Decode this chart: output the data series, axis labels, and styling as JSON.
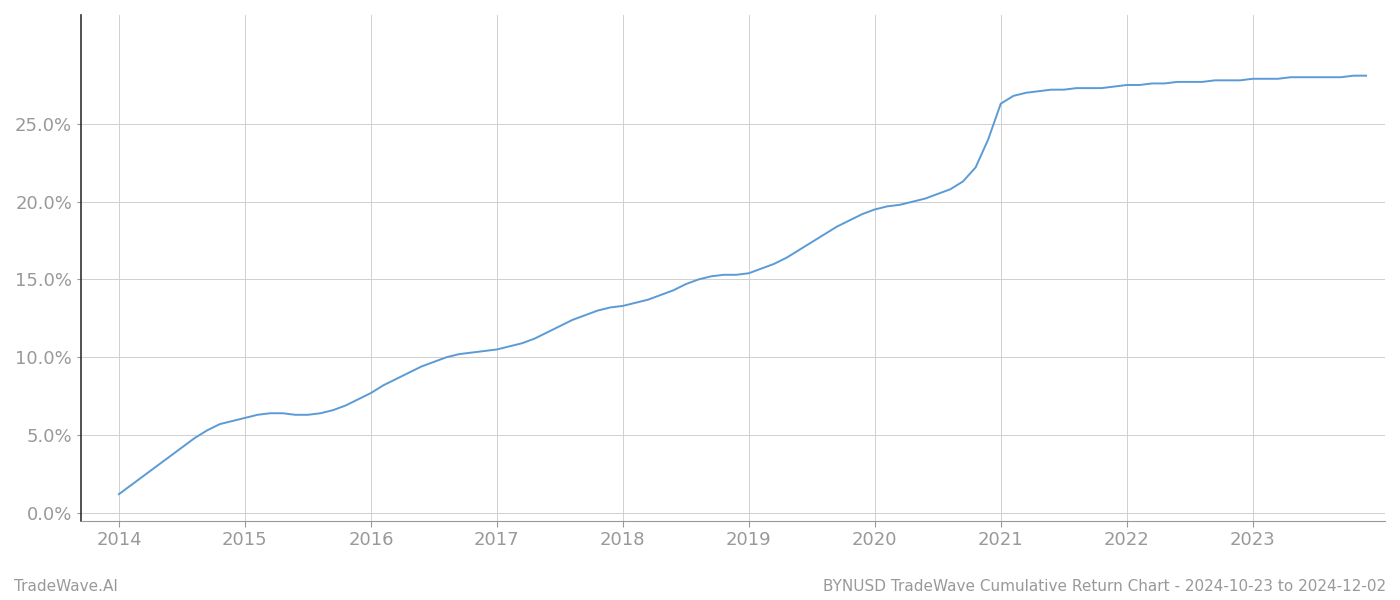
{
  "title": "BYNUSD TradeWave Cumulative Return Chart - 2024-10-23 to 2024-12-02",
  "watermark": "TradeWave.AI",
  "line_color": "#5b9bd5",
  "background_color": "#ffffff",
  "grid_color": "#d0d0d0",
  "x_values": [
    2014.0,
    2014.1,
    2014.2,
    2014.3,
    2014.4,
    2014.5,
    2014.6,
    2014.7,
    2014.8,
    2014.9,
    2015.0,
    2015.1,
    2015.2,
    2015.3,
    2015.4,
    2015.5,
    2015.6,
    2015.7,
    2015.8,
    2015.9,
    2016.0,
    2016.1,
    2016.2,
    2016.3,
    2016.4,
    2016.5,
    2016.6,
    2016.7,
    2016.8,
    2016.9,
    2017.0,
    2017.1,
    2017.2,
    2017.3,
    2017.4,
    2017.5,
    2017.6,
    2017.7,
    2017.8,
    2017.9,
    2018.0,
    2018.1,
    2018.2,
    2018.3,
    2018.4,
    2018.5,
    2018.6,
    2018.7,
    2018.8,
    2018.9,
    2019.0,
    2019.1,
    2019.2,
    2019.3,
    2019.4,
    2019.5,
    2019.6,
    2019.7,
    2019.8,
    2019.9,
    2020.0,
    2020.1,
    2020.2,
    2020.3,
    2020.4,
    2020.5,
    2020.6,
    2020.7,
    2020.8,
    2020.9,
    2021.0,
    2021.1,
    2021.2,
    2021.3,
    2021.4,
    2021.5,
    2021.6,
    2021.7,
    2021.8,
    2021.9,
    2022.0,
    2022.1,
    2022.2,
    2022.3,
    2022.4,
    2022.5,
    2022.6,
    2022.7,
    2022.8,
    2022.9,
    2023.0,
    2023.1,
    2023.2,
    2023.3,
    2023.4,
    2023.5,
    2023.6,
    2023.7,
    2023.8,
    2023.9
  ],
  "y_values": [
    0.012,
    0.018,
    0.024,
    0.03,
    0.036,
    0.042,
    0.048,
    0.053,
    0.057,
    0.059,
    0.061,
    0.063,
    0.064,
    0.064,
    0.063,
    0.063,
    0.064,
    0.066,
    0.069,
    0.073,
    0.077,
    0.082,
    0.086,
    0.09,
    0.094,
    0.097,
    0.1,
    0.102,
    0.103,
    0.104,
    0.105,
    0.107,
    0.109,
    0.112,
    0.116,
    0.12,
    0.124,
    0.127,
    0.13,
    0.132,
    0.133,
    0.135,
    0.137,
    0.14,
    0.143,
    0.147,
    0.15,
    0.152,
    0.153,
    0.153,
    0.154,
    0.157,
    0.16,
    0.164,
    0.169,
    0.174,
    0.179,
    0.184,
    0.188,
    0.192,
    0.195,
    0.197,
    0.198,
    0.2,
    0.202,
    0.205,
    0.208,
    0.213,
    0.222,
    0.24,
    0.263,
    0.268,
    0.27,
    0.271,
    0.272,
    0.272,
    0.273,
    0.273,
    0.273,
    0.274,
    0.275,
    0.275,
    0.276,
    0.276,
    0.277,
    0.277,
    0.277,
    0.278,
    0.278,
    0.278,
    0.279,
    0.279,
    0.279,
    0.28,
    0.28,
    0.28,
    0.28,
    0.28,
    0.281,
    0.281
  ],
  "xlim": [
    2013.7,
    2024.05
  ],
  "ylim": [
    -0.005,
    0.32
  ],
  "yticks": [
    0.0,
    0.05,
    0.1,
    0.15,
    0.2,
    0.25
  ],
  "ytick_labels": [
    "0.0%",
    "5.0%",
    "10.0%",
    "15.0%",
    "20.0%",
    "25.0%"
  ],
  "xticks": [
    2014,
    2015,
    2016,
    2017,
    2018,
    2019,
    2020,
    2021,
    2022,
    2023
  ],
  "tick_color": "#999999",
  "tick_fontsize": 13,
  "footer_fontsize": 11,
  "line_width": 1.4,
  "left_spine_color": "#333333",
  "bottom_spine_color": "#999999"
}
